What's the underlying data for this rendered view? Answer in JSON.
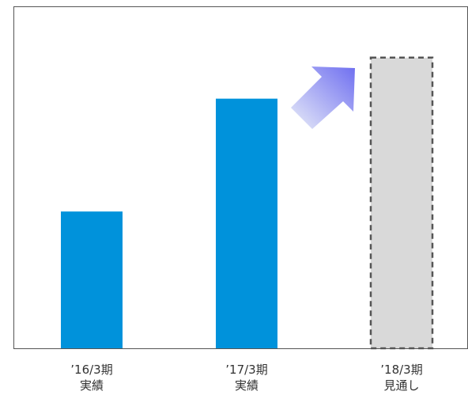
{
  "chart_data": {
    "type": "bar",
    "categories": [
      "’16/3期\n実績",
      "’17/3期\n実績",
      "’18/3期\n見通し"
    ],
    "values": [
      40,
      73,
      85
    ],
    "bar_styles": [
      "actual",
      "actual",
      "forecast"
    ],
    "ylim": [
      0,
      100
    ],
    "title": "",
    "xlabel": "",
    "ylabel": "",
    "grid": false,
    "legend": "none",
    "colors": {
      "actual": "#0092db",
      "forecast_fill": "#d9d9d9",
      "forecast_border": "#555555",
      "frame": "#555555",
      "arrow_start": "#e8ecf8",
      "arrow_end": "#6f6ff0"
    },
    "annotations": [
      {
        "type": "arrow",
        "name": "growth-arrow",
        "direction": "up-right"
      }
    ]
  }
}
